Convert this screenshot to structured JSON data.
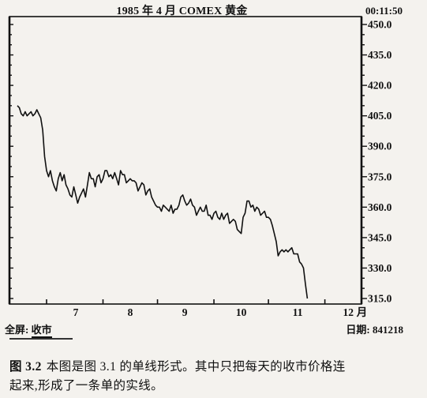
{
  "header": {
    "title": "1985 年 4 月 COMEX 黄金",
    "time": "00:11:50"
  },
  "footer": {
    "scope_label": "全屏:",
    "mode_label": "收市",
    "date_label": "日期:",
    "date_value": "841218"
  },
  "caption": {
    "figure_no": "图 3.2",
    "line1": "本图是图 3.1 的单线形式。其中只把每天的收市价格连",
    "line2": "起来,形成了一条单的实线。"
  },
  "chart_data": {
    "type": "line",
    "title": "1985 年 4 月 COMEX 黄金",
    "ylim": [
      315,
      450
    ],
    "yticks": [
      "450.0",
      "435.0",
      "420.0",
      "405.0",
      "390.0",
      "375.0",
      "360.0",
      "345.0",
      "330.0",
      "315.0"
    ],
    "yticks_num": [
      450,
      435,
      420,
      405,
      390,
      375,
      360,
      345,
      330,
      315
    ],
    "xlim": [
      0,
      176
    ],
    "x_month_ticks": [
      15,
      44,
      72,
      101,
      129,
      158
    ],
    "x_tick_labels": [
      {
        "label": "7",
        "x": 30
      },
      {
        "label": "8",
        "x": 58
      },
      {
        "label": "9",
        "x": 86
      },
      {
        "label": "10",
        "x": 115
      },
      {
        "label": "11",
        "x": 144
      },
      {
        "label": "12",
        "x": 170
      },
      {
        "label": "月",
        "x": 177
      }
    ],
    "grid": false,
    "series": [
      {
        "values": [
          410,
          409,
          406,
          405,
          407,
          405,
          406,
          407,
          405,
          406,
          408,
          406,
          404,
          398,
          385,
          378,
          375,
          378,
          373,
          370,
          368,
          374,
          377,
          373,
          376,
          371,
          369,
          366,
          365,
          370,
          366,
          362,
          365,
          367,
          369,
          365,
          371,
          377,
          374,
          374,
          370,
          375,
          376,
          372,
          374,
          378,
          378,
          375,
          376,
          374,
          377,
          374,
          371,
          378,
          376,
          376,
          372,
          373,
          374,
          373,
          373,
          372,
          368,
          370,
          372,
          371,
          366,
          368,
          369,
          365,
          363,
          361,
          360,
          360,
          358,
          361,
          360,
          359,
          358,
          361,
          357,
          359,
          359,
          361,
          365,
          366,
          363,
          361,
          362,
          364,
          361,
          360,
          356,
          358,
          360,
          358,
          358,
          361,
          356,
          356,
          354,
          357,
          358,
          355,
          354,
          357,
          354,
          356,
          357,
          352,
          353,
          354,
          353,
          349,
          348,
          347,
          355,
          357,
          363,
          363,
          360,
          361,
          358,
          360,
          359,
          356,
          357,
          358,
          355,
          355,
          354,
          351,
          347,
          343,
          336,
          338,
          339,
          338,
          339,
          338,
          339,
          340,
          337,
          337,
          337,
          333,
          332,
          330,
          322,
          315
        ]
      }
    ]
  }
}
